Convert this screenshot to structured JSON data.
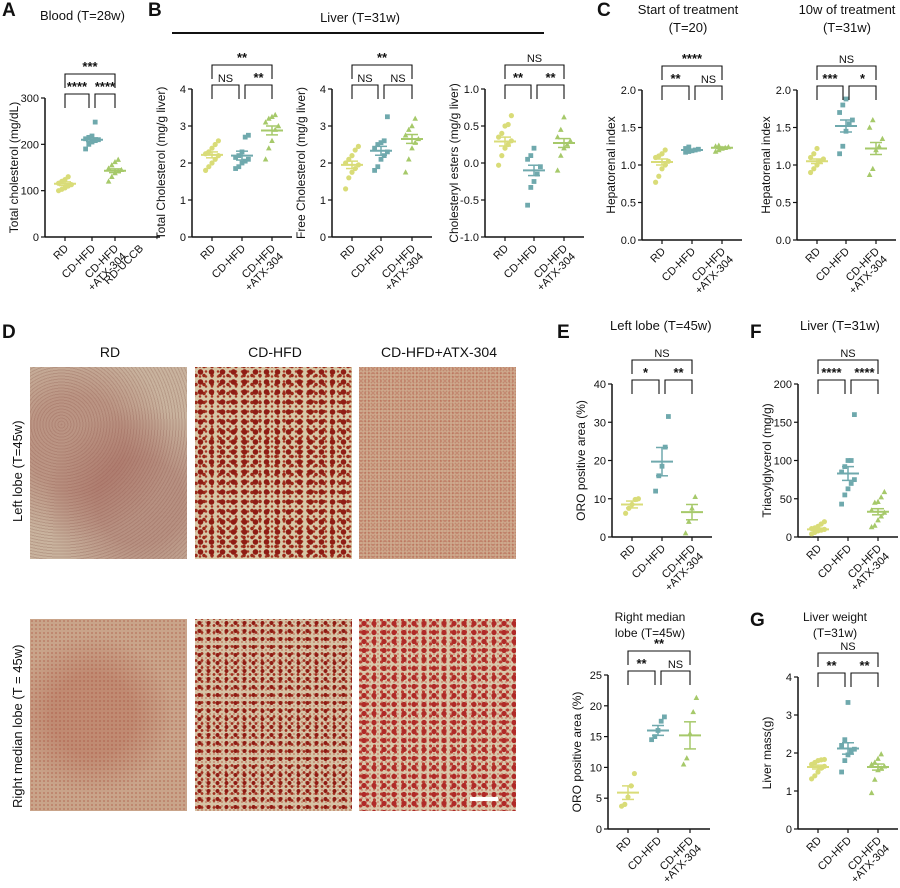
{
  "colors": {
    "RD": "#d9dc78",
    "CD-HFD": "#6fa9ad",
    "CD-HFD+ATX-304": "#a6c96a",
    "axis": "#111111"
  },
  "panels": {
    "A": {
      "letter": "A",
      "title": "Blood (T=28w)"
    },
    "B": {
      "letter": "B",
      "title": "Liver (T=31w)"
    },
    "C": {
      "letter": "C",
      "title_left": "Start of treatment",
      "title_left2": "(T=20)",
      "title_right": "10w of treatment",
      "title_right2": "(T=31w)"
    },
    "D": {
      "letter": "D",
      "col_labels": [
        "RD",
        "CD-HFD",
        "CD-HFD+ATX-304"
      ],
      "row_labels": [
        "Left lobe (T=45w)",
        "Right median lobe (T = 45w)"
      ]
    },
    "E": {
      "letter": "E",
      "title": "Left lobe (T=45w)",
      "title2a": "Right median",
      "title2b": "lobe (T=45w)"
    },
    "F": {
      "letter": "F",
      "title": "Liver (T=31w)"
    },
    "G": {
      "letter": "G",
      "title": "Liver weight",
      "title2": "(T=31w)"
    }
  },
  "chart_data": [
    {
      "id": "A",
      "type": "scatter",
      "title": "Blood (T=28w)",
      "ylabel": "Total cholesterol (mg/dL)",
      "ylim": [
        0,
        300
      ],
      "yticks": [
        0,
        100,
        200,
        300
      ],
      "categories": [
        "RD",
        "CD-HFD",
        "CD-HFD +ATX-304",
        "RD-UCCB"
      ],
      "series": [
        {
          "name": "RD",
          "mean": 115,
          "sem": 4,
          "values": [
            100,
            103,
            106,
            110,
            113,
            116,
            120,
            124,
            130
          ]
        },
        {
          "name": "CD-HFD",
          "mean": 210,
          "sem": 4,
          "values": [
            190,
            200,
            205,
            208,
            210,
            212,
            215,
            218,
            248
          ]
        },
        {
          "name": "CD-HFD+ATX-304",
          "mean": 143,
          "sem": 4,
          "values": [
            120,
            130,
            138,
            142,
            145,
            148,
            155,
            162,
            167
          ]
        }
      ],
      "significance": [
        {
          "pair": [
            "RD",
            "CD-HFD"
          ],
          "label": "****"
        },
        {
          "pair": [
            "CD-HFD",
            "CD-HFD+ATX-304"
          ],
          "label": "****"
        },
        {
          "pair": [
            "RD",
            "CD-HFD+ATX-304"
          ],
          "label": "***"
        }
      ]
    },
    {
      "id": "B1",
      "type": "scatter",
      "title": "Liver (T=31w)",
      "ylabel": "Total Cholesterol (mg/g liver)",
      "ylim": [
        0,
        4
      ],
      "yticks": [
        0,
        1,
        2,
        3,
        4
      ],
      "categories": [
        "RD",
        "CD-HFD",
        "CD-HFD +ATX-304"
      ],
      "series": [
        {
          "name": "RD",
          "mean": 2.22,
          "sem": 0.08,
          "values": [
            1.8,
            1.9,
            2.0,
            2.1,
            2.2,
            2.25,
            2.3,
            2.4,
            2.5,
            2.6
          ]
        },
        {
          "name": "CD-HFD",
          "mean": 2.2,
          "sem": 0.12,
          "values": [
            1.85,
            1.9,
            2.0,
            2.05,
            2.1,
            2.15,
            2.2,
            2.3,
            2.7,
            2.75
          ]
        },
        {
          "name": "CD-HFD+ATX-304",
          "mean": 2.88,
          "sem": 0.12,
          "values": [
            2.1,
            2.4,
            2.6,
            2.9,
            3.0,
            3.1,
            3.2,
            3.25,
            3.3
          ]
        }
      ],
      "significance": [
        {
          "pair": [
            "RD",
            "CD-HFD"
          ],
          "label": "NS"
        },
        {
          "pair": [
            "CD-HFD",
            "CD-HFD+ATX-304"
          ],
          "label": "**"
        },
        {
          "pair": [
            "RD",
            "CD-HFD+ATX-304"
          ],
          "label": "**"
        }
      ]
    },
    {
      "id": "B2",
      "type": "scatter",
      "ylabel": "Free Cholesterol (mg/g liver)",
      "ylim": [
        0,
        4
      ],
      "yticks": [
        0,
        1,
        2,
        3,
        4
      ],
      "categories": [
        "RD",
        "CD-HFD",
        "CD-HFD +ATX-304"
      ],
      "series": [
        {
          "name": "RD",
          "mean": 1.95,
          "sem": 0.1,
          "values": [
            1.3,
            1.6,
            1.75,
            1.85,
            1.95,
            2.0,
            2.1,
            2.2,
            2.35,
            2.45
          ]
        },
        {
          "name": "CD-HFD",
          "mean": 2.33,
          "sem": 0.12,
          "values": [
            1.8,
            1.9,
            2.1,
            2.2,
            2.3,
            2.4,
            2.5,
            2.55,
            2.6,
            3.25
          ]
        },
        {
          "name": "CD-HFD+ATX-304",
          "mean": 2.65,
          "sem": 0.12,
          "values": [
            1.75,
            2.1,
            2.4,
            2.55,
            2.65,
            2.75,
            2.9,
            3.0,
            3.2
          ]
        }
      ],
      "significance": [
        {
          "pair": [
            "RD",
            "CD-HFD"
          ],
          "label": "NS"
        },
        {
          "pair": [
            "CD-HFD",
            "CD-HFD+ATX-304"
          ],
          "label": "NS"
        },
        {
          "pair": [
            "RD",
            "CD-HFD+ATX-304"
          ],
          "label": "**"
        }
      ]
    },
    {
      "id": "B3",
      "type": "scatter",
      "ylabel": "Cholesteryl esters  (mg/g liver)",
      "ylim": [
        -1.0,
        1.0
      ],
      "yticks": [
        -1.0,
        -0.5,
        0.0,
        0.5,
        1.0
      ],
      "categories": [
        "RD",
        "CD-HFD",
        "CD-HFD +ATX-304"
      ],
      "series": [
        {
          "name": "RD",
          "mean": 0.29,
          "sem": 0.06,
          "values": [
            -0.03,
            0.1,
            0.2,
            0.25,
            0.3,
            0.35,
            0.4,
            0.5,
            0.52,
            0.64
          ]
        },
        {
          "name": "CD-HFD",
          "mean": -0.1,
          "sem": 0.07,
          "values": [
            -0.57,
            -0.33,
            -0.25,
            -0.15,
            -0.05,
            0.05,
            0.1,
            0.2
          ]
        },
        {
          "name": "CD-HFD+ATX-304",
          "mean": 0.27,
          "sem": 0.06,
          "values": [
            -0.1,
            0.1,
            0.2,
            0.25,
            0.3,
            0.35,
            0.45,
            0.62
          ]
        }
      ],
      "significance": [
        {
          "pair": [
            "RD",
            "CD-HFD"
          ],
          "label": "**"
        },
        {
          "pair": [
            "CD-HFD",
            "CD-HFD+ATX-304"
          ],
          "label": "**"
        },
        {
          "pair": [
            "RD",
            "CD-HFD+ATX-304"
          ],
          "label": "NS"
        }
      ]
    },
    {
      "id": "C1",
      "type": "scatter",
      "title": "Start of treatment (T=20)",
      "ylabel": "Hepatorenal index",
      "ylim": [
        0,
        2.0
      ],
      "yticks": [
        0.0,
        0.5,
        1.0,
        1.5,
        2.0
      ],
      "categories": [
        "RD",
        "CD-HFD",
        "CD-HFD +ATX-304"
      ],
      "series": [
        {
          "name": "RD",
          "mean": 1.04,
          "sem": 0.04,
          "values": [
            0.77,
            0.85,
            0.95,
            1.0,
            1.05,
            1.1,
            1.12,
            1.15,
            1.2
          ]
        },
        {
          "name": "CD-HFD",
          "mean": 1.2,
          "sem": 0.01,
          "values": [
            1.17,
            1.18,
            1.19,
            1.2,
            1.21,
            1.22,
            1.24
          ]
        },
        {
          "name": "CD-HFD+ATX-304",
          "mean": 1.23,
          "sem": 0.01,
          "values": [
            1.18,
            1.2,
            1.22,
            1.23,
            1.24,
            1.25,
            1.26
          ]
        }
      ],
      "significance": [
        {
          "pair": [
            "RD",
            "CD-HFD"
          ],
          "label": "**"
        },
        {
          "pair": [
            "CD-HFD",
            "CD-HFD+ATX-304"
          ],
          "label": "NS"
        },
        {
          "pair": [
            "RD",
            "CD-HFD+ATX-304"
          ],
          "label": "****"
        }
      ]
    },
    {
      "id": "C2",
      "type": "scatter",
      "title": "10w of treatment (T=31w)",
      "ylabel": "Hepatorenal index",
      "ylim": [
        0,
        2.0
      ],
      "yticks": [
        0.0,
        0.5,
        1.0,
        1.5,
        2.0
      ],
      "categories": [
        "RD",
        "CD-HFD",
        "CD-HFD +ATX-304"
      ],
      "series": [
        {
          "name": "RD",
          "mean": 1.05,
          "sem": 0.03,
          "values": [
            0.9,
            0.95,
            1.0,
            1.05,
            1.08,
            1.1,
            1.15,
            1.22
          ]
        },
        {
          "name": "CD-HFD",
          "mean": 1.52,
          "sem": 0.08,
          "values": [
            1.15,
            1.25,
            1.45,
            1.55,
            1.6,
            1.7,
            1.8,
            1.88
          ]
        },
        {
          "name": "CD-HFD+ATX-304",
          "mean": 1.22,
          "sem": 0.08,
          "values": [
            0.87,
            0.95,
            1.2,
            1.25,
            1.35,
            1.5,
            1.6
          ]
        }
      ],
      "significance": [
        {
          "pair": [
            "RD",
            "CD-HFD"
          ],
          "label": "***"
        },
        {
          "pair": [
            "CD-HFD",
            "CD-HFD+ATX-304"
          ],
          "label": "*"
        },
        {
          "pair": [
            "RD",
            "CD-HFD+ATX-304"
          ],
          "label": "NS"
        }
      ]
    },
    {
      "id": "E1",
      "type": "scatter",
      "title": "Left lobe (T=45w)",
      "ylabel": "ORO positive area (%)",
      "ylim": [
        0,
        40
      ],
      "yticks": [
        0,
        10,
        20,
        30,
        40
      ],
      "categories": [
        "RD",
        "CD-HFD",
        "CD-HFD +ATX-304"
      ],
      "series": [
        {
          "name": "RD",
          "mean": 8.5,
          "sem": 0.9,
          "values": [
            6.2,
            7.5,
            8.5,
            9.8,
            10.0
          ]
        },
        {
          "name": "CD-HFD",
          "mean": 19.7,
          "sem": 3.7,
          "values": [
            12.0,
            16.0,
            18.5,
            23.5,
            31.5
          ]
        },
        {
          "name": "CD-HFD+ATX-304",
          "mean": 6.5,
          "sem": 2.0,
          "values": [
            1.0,
            4.0,
            7.5,
            10.5
          ]
        }
      ],
      "significance": [
        {
          "pair": [
            "RD",
            "CD-HFD"
          ],
          "label": "*"
        },
        {
          "pair": [
            "CD-HFD",
            "CD-HFD+ATX-304"
          ],
          "label": "**"
        },
        {
          "pair": [
            "RD",
            "CD-HFD+ATX-304"
          ],
          "label": "NS"
        }
      ]
    },
    {
      "id": "E2",
      "type": "scatter",
      "title": "Right median lobe (T=45w)",
      "ylabel": "ORO positive area (%)",
      "ylim": [
        0,
        25
      ],
      "yticks": [
        0,
        5,
        10,
        15,
        20,
        25
      ],
      "categories": [
        "RD",
        "CD-HFD",
        "CD-HFD +ATX-304"
      ],
      "series": [
        {
          "name": "RD",
          "mean": 5.9,
          "sem": 1.1,
          "values": [
            3.7,
            4.0,
            5.2,
            7.0,
            9.0
          ]
        },
        {
          "name": "CD-HFD",
          "mean": 16.0,
          "sem": 0.8,
          "values": [
            14.5,
            15.0,
            16.0,
            17.5,
            18.2
          ]
        },
        {
          "name": "CD-HFD+ATX-304",
          "mean": 15.2,
          "sem": 2.2,
          "values": [
            10.5,
            11.5,
            15.5,
            19.0,
            21.3
          ]
        }
      ],
      "significance": [
        {
          "pair": [
            "RD",
            "CD-HFD"
          ],
          "label": "**"
        },
        {
          "pair": [
            "CD-HFD",
            "CD-HFD+ATX-304"
          ],
          "label": "NS"
        },
        {
          "pair": [
            "RD",
            "CD-HFD+ATX-304"
          ],
          "label": "**"
        }
      ]
    },
    {
      "id": "F",
      "type": "scatter",
      "title": "Liver (T=31w)",
      "ylabel": "Triacylglycerol (mg/g)",
      "ylim": [
        0,
        200
      ],
      "yticks": [
        0,
        50,
        100,
        150,
        200
      ],
      "categories": [
        "RD",
        "CD-HFD",
        "CD-HFD +ATX-304"
      ],
      "series": [
        {
          "name": "RD",
          "mean": 10,
          "sem": 1.5,
          "values": [
            4,
            6,
            8,
            9,
            10,
            11,
            12,
            14,
            17,
            20
          ]
        },
        {
          "name": "CD-HFD",
          "mean": 83,
          "sem": 9,
          "values": [
            43,
            55,
            63,
            70,
            75,
            85,
            92,
            100,
            100,
            160
          ]
        },
        {
          "name": "CD-HFD+ATX-304",
          "mean": 33,
          "sem": 4,
          "values": [
            13,
            15,
            22,
            27,
            32,
            35,
            45,
            46,
            52,
            59
          ]
        }
      ],
      "significance": [
        {
          "pair": [
            "RD",
            "CD-HFD"
          ],
          "label": "****"
        },
        {
          "pair": [
            "CD-HFD",
            "CD-HFD+ATX-304"
          ],
          "label": "****"
        },
        {
          "pair": [
            "RD",
            "CD-HFD+ATX-304"
          ],
          "label": "NS"
        }
      ]
    },
    {
      "id": "G",
      "type": "scatter",
      "title": "Liver weight (T=31w)",
      "ylabel": "Liver mass(g)",
      "ylim": [
        0,
        4
      ],
      "yticks": [
        0,
        1,
        2,
        3,
        4
      ],
      "categories": [
        "RD",
        "CD-HFD",
        "CD-HFD +ATX-304"
      ],
      "series": [
        {
          "name": "RD",
          "mean": 1.63,
          "sem": 0.05,
          "values": [
            1.32,
            1.4,
            1.5,
            1.6,
            1.65,
            1.7,
            1.75,
            1.8,
            1.82,
            1.83
          ]
        },
        {
          "name": "CD-HFD",
          "mean": 2.12,
          "sem": 0.15,
          "values": [
            1.5,
            1.8,
            1.95,
            2.05,
            2.1,
            2.2,
            2.35,
            3.33
          ]
        },
        {
          "name": "CD-HFD+ATX-304",
          "mean": 1.63,
          "sem": 0.08,
          "values": [
            0.95,
            1.3,
            1.55,
            1.6,
            1.65,
            1.7,
            1.75,
            1.85,
            1.97
          ]
        }
      ],
      "significance": [
        {
          "pair": [
            "RD",
            "CD-HFD"
          ],
          "label": "**"
        },
        {
          "pair": [
            "CD-HFD",
            "CD-HFD+ATX-304"
          ],
          "label": "**"
        },
        {
          "pair": [
            "RD",
            "CD-HFD+ATX-304"
          ],
          "label": "NS"
        }
      ]
    }
  ]
}
